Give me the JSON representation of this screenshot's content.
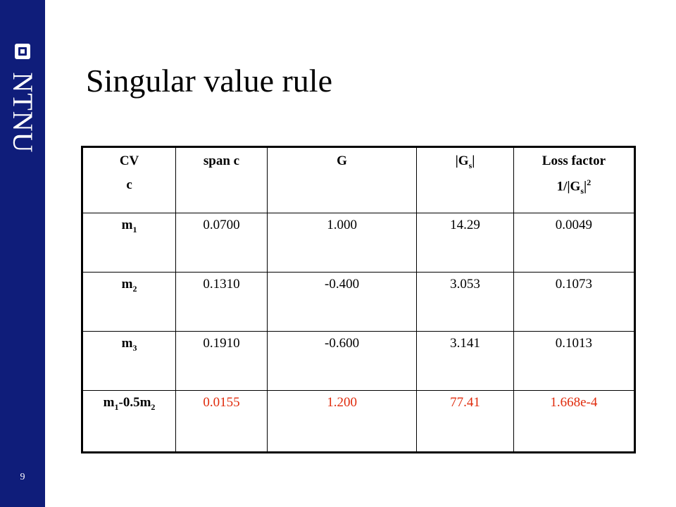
{
  "sidebar": {
    "brand": "NTNU",
    "page_number": "9",
    "bg_color": "#0f1d7a"
  },
  "slide": {
    "title": "Singular value rule"
  },
  "table": {
    "headers": {
      "cv_line1": "CV",
      "cv_line2": "c",
      "span": "span c",
      "g": "G",
      "gs_pre": "|G",
      "gs_sub": "s",
      "gs_post": "|",
      "loss_line1": "Loss factor",
      "loss_pre": "1/|G",
      "loss_sub": "s",
      "loss_post": "|",
      "loss_sup": "2"
    },
    "rows": [
      {
        "cv_base": "m",
        "cv_sub": "1",
        "span": "0.0700",
        "g": "1.000",
        "gs": "14.29",
        "loss": "0.0049"
      },
      {
        "cv_base": "m",
        "cv_sub": "2",
        "span": "0.1310",
        "g": "-0.400",
        "gs": "3.053",
        "loss": "0.1073"
      },
      {
        "cv_base": "m",
        "cv_sub": "3",
        "span": "0.1910",
        "g": "-0.600",
        "gs": "3.141",
        "loss": "0.1013"
      },
      {
        "cv_a": "m",
        "cv_a_sub": "1",
        "cv_mid": "-0.5m",
        "cv_b_sub": "2",
        "span": "0.0155",
        "g": "1.200",
        "gs": "77.41",
        "loss": "1.668e-4"
      }
    ],
    "highlight_color": "#e02b0c"
  }
}
